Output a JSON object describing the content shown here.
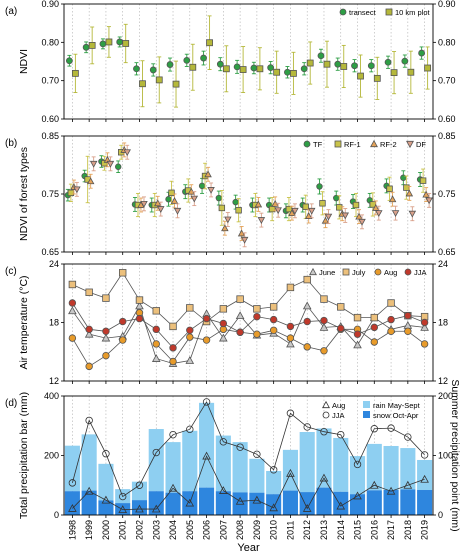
{
  "figure": {
    "x_title": "Year",
    "years": [
      1998,
      1999,
      2000,
      2001,
      2002,
      2003,
      2004,
      2005,
      2006,
      2007,
      2008,
      2009,
      2010,
      2011,
      2012,
      2013,
      2014,
      2015,
      2016,
      2017,
      2018,
      2019
    ]
  },
  "chart_data": [
    {
      "panel": "(a)",
      "type": "scatter",
      "ylabel": "NDVI",
      "ylim": [
        0.6,
        0.9
      ],
      "yticks": [
        "0.60",
        "0.70",
        "0.80",
        "0.90"
      ],
      "right_axis": true,
      "grid": "vertical dotted",
      "legend_position": "top-right",
      "series": [
        {
          "name": "transect",
          "color": "#2e9e45",
          "marker": "circle",
          "values": [
            0.752,
            0.787,
            0.796,
            0.801,
            0.731,
            0.728,
            0.742,
            0.753,
            0.759,
            0.743,
            0.736,
            0.733,
            0.734,
            0.722,
            0.731,
            0.765,
            0.743,
            0.739,
            0.739,
            0.748,
            0.751,
            0.772
          ],
          "err": [
            0.014,
            0.014,
            0.013,
            0.013,
            0.016,
            0.016,
            0.017,
            0.016,
            0.018,
            0.017,
            0.017,
            0.015,
            0.016,
            0.015,
            0.016,
            0.017,
            0.016,
            0.016,
            0.016,
            0.016,
            0.016,
            0.016
          ]
        },
        {
          "name": "10 km plot",
          "color": "#b5b83a",
          "marker": "square",
          "values": [
            0.719,
            0.792,
            0.801,
            0.797,
            0.692,
            0.702,
            0.691,
            0.735,
            0.799,
            0.731,
            0.729,
            0.731,
            0.722,
            0.719,
            0.746,
            0.743,
            0.737,
            0.712,
            0.706,
            0.721,
            0.722,
            0.733
          ],
          "err": [
            0.05,
            0.048,
            0.04,
            0.05,
            0.06,
            0.06,
            0.06,
            0.06,
            0.07,
            0.06,
            0.06,
            0.055,
            0.055,
            0.055,
            0.055,
            0.06,
            0.055,
            0.055,
            0.055,
            0.055,
            0.055,
            0.055
          ]
        }
      ]
    },
    {
      "panel": "(b)",
      "type": "scatter",
      "ylabel": "NDVI of forest types",
      "ylim": [
        0.65,
        0.85
      ],
      "yticks": [
        "0.65",
        "0.75",
        "0.85"
      ],
      "right_axis": true,
      "grid": "vertical dotted",
      "legend_position": "top-right",
      "series": [
        {
          "name": "TF",
          "color": "#2e9e45",
          "marker": "circle",
          "values": [
            0.748,
            0.781,
            0.806,
            0.797,
            0.732,
            0.731,
            0.741,
            0.754,
            0.764,
            0.743,
            0.736,
            0.731,
            0.731,
            0.721,
            0.731,
            0.763,
            0.743,
            0.737,
            0.739,
            0.764,
            0.778,
            0.775
          ],
          "err": [
            0.01,
            0.01,
            0.01,
            0.01,
            0.012,
            0.012,
            0.012,
            0.012,
            0.013,
            0.012,
            0.012,
            0.012,
            0.012,
            0.012,
            0.012,
            0.013,
            0.012,
            0.012,
            0.012,
            0.012,
            0.012,
            0.012
          ]
        },
        {
          "name": "RF-1",
          "color": "#c9c34a",
          "marker": "square",
          "values": [
            0.752,
            0.775,
            0.803,
            0.822,
            0.731,
            0.731,
            0.752,
            0.756,
            0.781,
            0.726,
            0.722,
            0.731,
            0.724,
            0.724,
            0.728,
            0.734,
            0.727,
            0.731,
            0.732,
            0.759,
            0.761,
            0.773
          ],
          "err": [
            0.015,
            0.04,
            0.012,
            0.012,
            0.02,
            0.02,
            0.02,
            0.02,
            0.022,
            0.03,
            0.02,
            0.02,
            0.02,
            0.02,
            0.02,
            0.02,
            0.02,
            0.02,
            0.02,
            0.02,
            0.02,
            0.02
          ]
        },
        {
          "name": "RF-2",
          "color": "#e4a35a",
          "marker": "triangle-up",
          "values": [
            0.762,
            0.772,
            0.809,
            0.826,
            0.731,
            0.734,
            0.738,
            0.754,
            0.784,
            0.691,
            0.682,
            0.732,
            0.733,
            0.717,
            0.712,
            0.704,
            0.716,
            0.711,
            0.726,
            0.741,
            0.751,
            0.749
          ],
          "err": [
            0.012,
            0.012,
            0.012,
            0.012,
            0.012,
            0.012,
            0.012,
            0.012,
            0.012,
            0.012,
            0.012,
            0.012,
            0.012,
            0.012,
            0.012,
            0.012,
            0.012,
            0.012,
            0.012,
            0.012,
            0.012,
            0.012
          ]
        },
        {
          "name": "DF",
          "color": "#d9a08a",
          "marker": "triangle-down",
          "values": [
            0.758,
            0.802,
            0.802,
            0.822,
            0.733,
            0.724,
            0.721,
            0.742,
            0.757,
            0.706,
            0.671,
            0.705,
            0.722,
            0.721,
            0.721,
            0.711,
            0.713,
            0.702,
            0.717,
            0.717,
            0.716,
            0.739
          ],
          "err": [
            0.012,
            0.012,
            0.012,
            0.012,
            0.012,
            0.012,
            0.012,
            0.012,
            0.012,
            0.012,
            0.012,
            0.012,
            0.012,
            0.012,
            0.012,
            0.012,
            0.012,
            0.012,
            0.012,
            0.012,
            0.012,
            0.012
          ]
        }
      ]
    },
    {
      "panel": "(c)",
      "type": "line",
      "ylabel": "Air temperature (°C)",
      "ylim": [
        12,
        24
      ],
      "yticks": [
        "12",
        "18",
        "24"
      ],
      "right_axis": true,
      "grid": "vertical dotted",
      "legend_position": "top-right",
      "series": [
        {
          "name": "June",
          "color": "#c8c8c8",
          "marker": "triangle-up",
          "values": [
            19.2,
            16.8,
            16.4,
            16.6,
            19.7,
            14.3,
            13.8,
            14.1,
            18.9,
            16.4,
            18.7,
            16.7,
            16.9,
            15.8,
            19.7,
            17.5,
            17.6,
            15.7,
            18.5,
            17.3,
            17.7,
            17.5
          ]
        },
        {
          "name": "July",
          "color": "#ecc07c",
          "marker": "square",
          "values": [
            21.9,
            21.1,
            20.5,
            23.1,
            20.3,
            19.2,
            17.6,
            19.5,
            18.1,
            19.4,
            20.4,
            19.4,
            19.6,
            21.6,
            22.4,
            20.4,
            19.6,
            18.5,
            18.5,
            20.0,
            18.7,
            18.6
          ]
        },
        {
          "name": "Aug",
          "color": "#e89b2a",
          "marker": "circle",
          "values": [
            16.4,
            13.5,
            14.6,
            16.2,
            19.0,
            15.8,
            14.0,
            16.5,
            16.2,
            17.3,
            17.0,
            16.8,
            17.2,
            16.4,
            15.5,
            15.1,
            17.3,
            17.3,
            16.0,
            17.1,
            17.1,
            15.8
          ]
        },
        {
          "name": "JJA",
          "color": "#c0392b",
          "marker": "circle",
          "values": [
            20.0,
            17.3,
            17.1,
            18.1,
            18.4,
            17.3,
            15.4,
            17.2,
            18.4,
            17.9,
            17.0,
            18.6,
            18.3,
            17.6,
            18.1,
            18.2,
            17.4,
            16.8,
            17.5,
            18.3,
            18.7,
            18.0
          ]
        }
      ]
    },
    {
      "panel": "(d)",
      "type": "bar+line",
      "ylabel": "Total precipitation bar (mm)",
      "ylabel_right": "Summer precipitation point (mm)",
      "ylim": [
        0,
        400
      ],
      "yticks": [
        "0",
        "200",
        "400"
      ],
      "ylim_right": [
        0,
        200
      ],
      "yticks_right": [
        "0",
        "100",
        "200"
      ],
      "grid": "vertical dotted",
      "legend_position": "top-right",
      "bars": [
        {
          "name": "rain May-Sept",
          "color": "#8ecff1",
          "values": [
            153,
            189,
            123,
            47,
            62,
            209,
            170,
            203,
            285,
            187,
            169,
            114,
            78,
            137,
            202,
            199,
            181,
            128,
            156,
            148,
            139,
            101
          ]
        },
        {
          "name": "snow Oct-Apr",
          "color": "#2e86de",
          "values": [
            80,
            82,
            49,
            40,
            50,
            80,
            75,
            80,
            92,
            80,
            76,
            75,
            70,
            82,
            77,
            92,
            78,
            70,
            83,
            84,
            86,
            84
          ]
        }
      ],
      "series": [
        {
          "name": "Aug",
          "color": "#333333",
          "marker": "triangle-up",
          "values": [
            11,
            40,
            25,
            9,
            10,
            10,
            45,
            20,
            99,
            41,
            23,
            25,
            12,
            70,
            11,
            62,
            15,
            32,
            50,
            40,
            50,
            60
          ]
        },
        {
          "name": "JJA",
          "color": "#333333",
          "marker": "circle",
          "values": [
            54,
            159,
            103,
            31,
            50,
            105,
            135,
            144,
            190,
            123,
            114,
            102,
            76,
            171,
            148,
            140,
            135,
            85,
            145,
            146,
            131,
            101
          ]
        }
      ]
    }
  ]
}
